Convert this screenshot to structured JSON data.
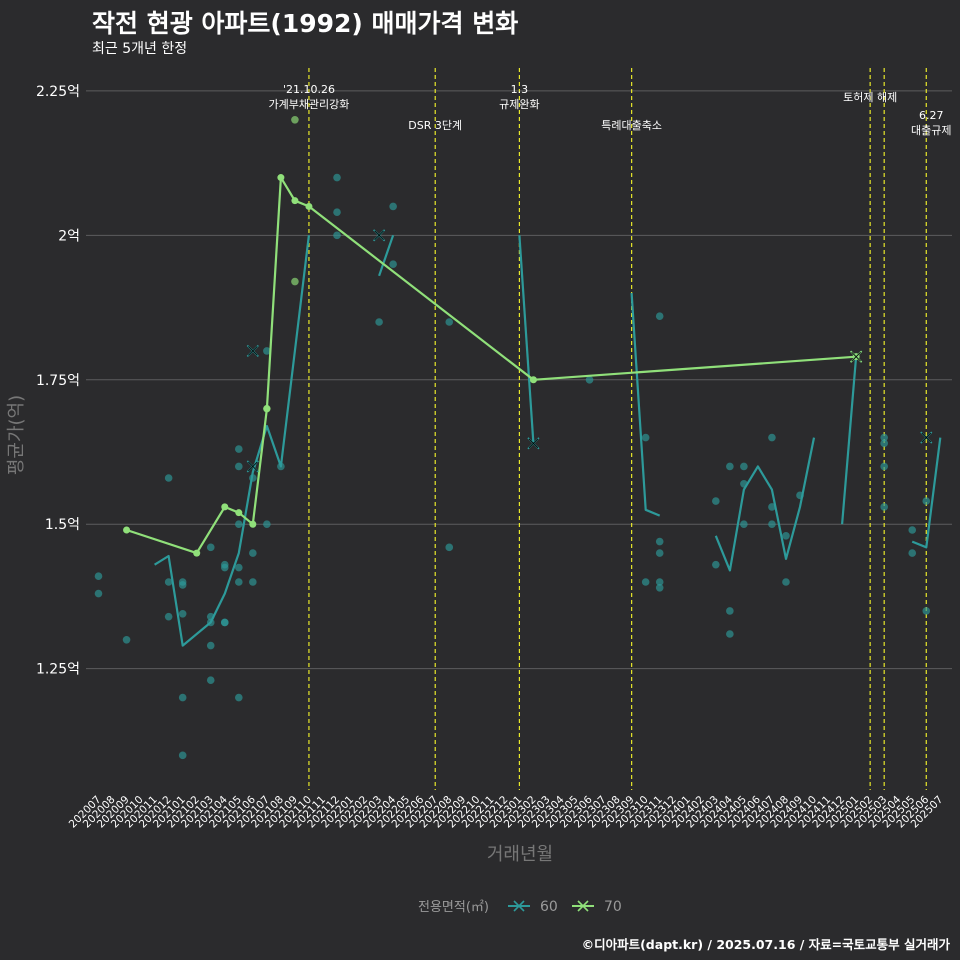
{
  "header": {
    "title": "작전 현광 아파트(1992) 매매가격 변화",
    "subtitle": "최근 5개년 한정"
  },
  "caption": "©디아파트(dapt.kr) / 2025.07.16 / 자료=국토교통부 실거래가",
  "colors": {
    "background": "#2b2b2d",
    "grid": "#5c5c5e",
    "series60": "#2d9a9a",
    "series70": "#90e07a",
    "vline": "#e8e82a"
  },
  "chart_data": {
    "type": "line",
    "title": "작전 현광 아파트(1992) 매매가격 변화",
    "xlabel": "거래년월",
    "ylabel": "평균가(억)",
    "ylim": [
      1.04,
      2.3
    ],
    "y_ticks": [
      {
        "value": 1.25,
        "label": "1.25억"
      },
      {
        "value": 1.5,
        "label": "1.5억"
      },
      {
        "value": 1.75,
        "label": "1.75억"
      },
      {
        "value": 2.0,
        "label": "2억"
      },
      {
        "value": 2.25,
        "label": "2.25억"
      }
    ],
    "categories": [
      "202007",
      "202008",
      "202009",
      "202010",
      "202011",
      "202012",
      "202101",
      "202102",
      "202103",
      "202104",
      "202105",
      "202106",
      "202107",
      "202108",
      "202109",
      "202110",
      "202111",
      "202112",
      "202201",
      "202202",
      "202203",
      "202204",
      "202205",
      "202206",
      "202207",
      "202208",
      "202209",
      "202210",
      "202211",
      "202212",
      "202301",
      "202302",
      "202303",
      "202304",
      "202305",
      "202306",
      "202307",
      "202308",
      "202309",
      "202310",
      "202311",
      "202312",
      "202401",
      "202402",
      "202403",
      "202404",
      "202405",
      "202406",
      "202407",
      "202408",
      "202409",
      "202410",
      "202411",
      "202412",
      "202501",
      "202502",
      "202503",
      "202504",
      "202505",
      "202506",
      "202507"
    ],
    "legend": {
      "title": "전용면적(㎡)",
      "position": "bottom"
    },
    "series": [
      {
        "name": "60",
        "segments": [
          [
            [
              4,
              1.43
            ],
            [
              5,
              1.445
            ],
            [
              6,
              1.29
            ],
            [
              8,
              1.33
            ],
            [
              9,
              1.38
            ],
            [
              10,
              1.45
            ],
            [
              11,
              1.59
            ],
            [
              12,
              1.67
            ],
            [
              13,
              1.6
            ],
            [
              15,
              2.0
            ]
          ],
          [
            [
              20,
              1.93
            ],
            [
              21,
              2.0
            ]
          ],
          [
            [
              30,
              2.0
            ],
            [
              31,
              1.64
            ]
          ],
          [
            [
              38,
              1.9
            ],
            [
              39,
              1.525
            ],
            [
              40,
              1.515
            ]
          ],
          [
            [
              44,
              1.48
            ],
            [
              45,
              1.42
            ],
            [
              46,
              1.56
            ],
            [
              47,
              1.6
            ],
            [
              48,
              1.56
            ],
            [
              49,
              1.44
            ],
            [
              50,
              1.53
            ],
            [
              51,
              1.65
            ]
          ],
          [
            [
              53,
              1.5
            ],
            [
              54,
              1.79
            ]
          ],
          [
            [
              58,
              1.47
            ],
            [
              59,
              1.46
            ],
            [
              60,
              1.65
            ]
          ]
        ],
        "cross_markers": [
          [
            11,
            1.6
          ],
          [
            11,
            1.8
          ],
          [
            20,
            2.0
          ],
          [
            31,
            1.64
          ],
          [
            54,
            1.79
          ],
          [
            59,
            1.65
          ]
        ]
      },
      {
        "name": "70",
        "segments": [
          [
            [
              2,
              1.49
            ],
            [
              7,
              1.45
            ],
            [
              9,
              1.53
            ],
            [
              10,
              1.52
            ],
            [
              11,
              1.5
            ],
            [
              12,
              1.7
            ],
            [
              13,
              2.1
            ],
            [
              14,
              2.06
            ],
            [
              15,
              2.05
            ],
            [
              31,
              1.75
            ],
            [
              54,
              1.79
            ]
          ]
        ],
        "cross_markers": [
          [
            54,
            1.79
          ]
        ]
      }
    ],
    "scatter": [
      {
        "s": "60",
        "x": 0,
        "y": 1.41
      },
      {
        "s": "60",
        "x": 0,
        "y": 1.38
      },
      {
        "s": "60",
        "x": 2,
        "y": 1.3
      },
      {
        "s": "60",
        "x": 5,
        "y": 1.58
      },
      {
        "s": "60",
        "x": 5,
        "y": 1.4
      },
      {
        "s": "60",
        "x": 5,
        "y": 1.34
      },
      {
        "s": "60",
        "x": 6,
        "y": 1.4
      },
      {
        "s": "60",
        "x": 6,
        "y": 1.395
      },
      {
        "s": "60",
        "x": 6,
        "y": 1.345
      },
      {
        "s": "60",
        "x": 6,
        "y": 1.2
      },
      {
        "s": "60",
        "x": 6,
        "y": 1.1
      },
      {
        "s": "60",
        "x": 8,
        "y": 1.46
      },
      {
        "s": "60",
        "x": 8,
        "y": 1.34
      },
      {
        "s": "60",
        "x": 8,
        "y": 1.33
      },
      {
        "s": "60",
        "x": 8,
        "y": 1.29
      },
      {
        "s": "60",
        "x": 8,
        "y": 1.23
      },
      {
        "s": "60",
        "x": 9,
        "y": 1.43
      },
      {
        "s": "60",
        "x": 9,
        "y": 1.425
      },
      {
        "s": "60",
        "x": 9,
        "y": 1.33
      },
      {
        "s": "60",
        "x": 9,
        "y": 1.33
      },
      {
        "s": "60",
        "x": 10,
        "y": 1.63
      },
      {
        "s": "60",
        "x": 10,
        "y": 1.6
      },
      {
        "s": "60",
        "x": 10,
        "y": 1.5
      },
      {
        "s": "60",
        "x": 10,
        "y": 1.425
      },
      {
        "s": "60",
        "x": 10,
        "y": 1.4
      },
      {
        "s": "60",
        "x": 10,
        "y": 1.2
      },
      {
        "s": "60",
        "x": 11,
        "y": 1.58
      },
      {
        "s": "60",
        "x": 11,
        "y": 1.45
      },
      {
        "s": "60",
        "x": 11,
        "y": 1.4
      },
      {
        "s": "60",
        "x": 12,
        "y": 1.8
      },
      {
        "s": "60",
        "x": 12,
        "y": 1.5
      },
      {
        "s": "60",
        "x": 13,
        "y": 1.6
      },
      {
        "s": "60",
        "x": 17,
        "y": 2.1
      },
      {
        "s": "60",
        "x": 17,
        "y": 2.04
      },
      {
        "s": "60",
        "x": 17,
        "y": 2.0
      },
      {
        "s": "60",
        "x": 20,
        "y": 1.85
      },
      {
        "s": "60",
        "x": 21,
        "y": 2.05
      },
      {
        "s": "60",
        "x": 21,
        "y": 1.95
      },
      {
        "s": "60",
        "x": 25,
        "y": 1.85
      },
      {
        "s": "60",
        "x": 25,
        "y": 1.46
      },
      {
        "s": "60",
        "x": 35,
        "y": 1.75
      },
      {
        "s": "60",
        "x": 39,
        "y": 1.65
      },
      {
        "s": "60",
        "x": 39,
        "y": 1.4
      },
      {
        "s": "60",
        "x": 40,
        "y": 1.86
      },
      {
        "s": "60",
        "x": 40,
        "y": 1.47
      },
      {
        "s": "60",
        "x": 40,
        "y": 1.45
      },
      {
        "s": "60",
        "x": 40,
        "y": 1.4
      },
      {
        "s": "60",
        "x": 40,
        "y": 1.39
      },
      {
        "s": "60",
        "x": 44,
        "y": 1.54
      },
      {
        "s": "60",
        "x": 44,
        "y": 1.43
      },
      {
        "s": "60",
        "x": 45,
        "y": 1.6
      },
      {
        "s": "60",
        "x": 45,
        "y": 1.35
      },
      {
        "s": "60",
        "x": 45,
        "y": 1.31
      },
      {
        "s": "60",
        "x": 46,
        "y": 1.6
      },
      {
        "s": "60",
        "x": 46,
        "y": 1.57
      },
      {
        "s": "60",
        "x": 46,
        "y": 1.5
      },
      {
        "s": "60",
        "x": 48,
        "y": 1.65
      },
      {
        "s": "60",
        "x": 48,
        "y": 1.53
      },
      {
        "s": "60",
        "x": 48,
        "y": 1.5
      },
      {
        "s": "60",
        "x": 49,
        "y": 1.48
      },
      {
        "s": "60",
        "x": 49,
        "y": 1.4
      },
      {
        "s": "60",
        "x": 50,
        "y": 1.55
      },
      {
        "s": "60",
        "x": 56,
        "y": 1.65
      },
      {
        "s": "60",
        "x": 56,
        "y": 1.64
      },
      {
        "s": "60",
        "x": 56,
        "y": 1.6
      },
      {
        "s": "60",
        "x": 56,
        "y": 1.53
      },
      {
        "s": "60",
        "x": 58,
        "y": 1.49
      },
      {
        "s": "60",
        "x": 58,
        "y": 1.45
      },
      {
        "s": "60",
        "x": 59,
        "y": 1.54
      },
      {
        "s": "60",
        "x": 59,
        "y": 1.35
      },
      {
        "s": "70",
        "x": 14,
        "y": 2.2
      },
      {
        "s": "70",
        "x": 14,
        "y": 1.92
      },
      {
        "s": "70",
        "x": 12,
        "y": 1.7
      }
    ],
    "vlines": [
      {
        "x": 15,
        "lines": [
          "'21.10.26",
          "가계부채관리강화"
        ],
        "level": 0
      },
      {
        "x": 24,
        "lines": [
          "DSR 3단계"
        ],
        "level": 2
      },
      {
        "x": 30,
        "lines": [
          "1.3",
          "규제완화"
        ],
        "level": 0
      },
      {
        "x": 38,
        "lines": [
          "특례대출축소"
        ],
        "level": 2
      },
      {
        "x": 55,
        "lines": [],
        "level": 0
      },
      {
        "x": 56,
        "lines": [
          "토허제 해제"
        ],
        "level": 1
      },
      {
        "x": 59,
        "lines": [
          "6.27",
          "대출규제"
        ],
        "level": 3
      }
    ]
  }
}
